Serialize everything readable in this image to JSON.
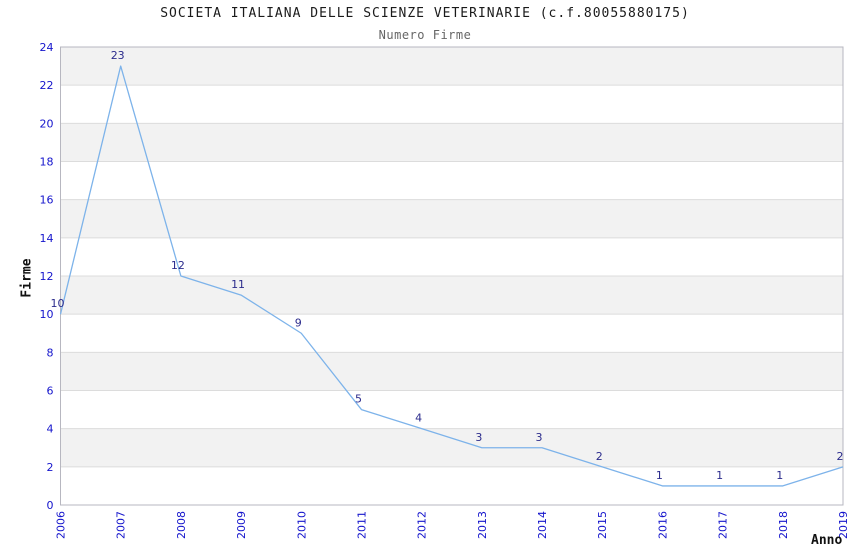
{
  "chart_data": {
    "type": "line",
    "title": "SOCIETA ITALIANA DELLE SCIENZE VETERINARIE (c.f.80055880175)",
    "subtitle": "Numero Firme",
    "xlabel": "Anno",
    "ylabel": "Firme",
    "categories": [
      "2006",
      "2007",
      "2008",
      "2009",
      "2010",
      "2011",
      "2012",
      "2013",
      "2014",
      "2015",
      "2016",
      "2017",
      "2018",
      "2019"
    ],
    "values": [
      10,
      23,
      12,
      11,
      9,
      5,
      4,
      3,
      3,
      2,
      1,
      1,
      1,
      2
    ],
    "ylim": [
      0,
      24
    ],
    "ytick_step": 2,
    "grid": "horizontal-bands-alternating",
    "legend": "none",
    "colors": {
      "line": "#7db3ea",
      "data_label": "#2b2b8c",
      "tick_label": "#1414cc",
      "band": "#f2f2f2",
      "gridline": "#dcdcdc",
      "plot_border": "#b7b7c0",
      "title": "#1a1a1a",
      "subtitle": "#666666",
      "axis_label": "#111111"
    }
  }
}
